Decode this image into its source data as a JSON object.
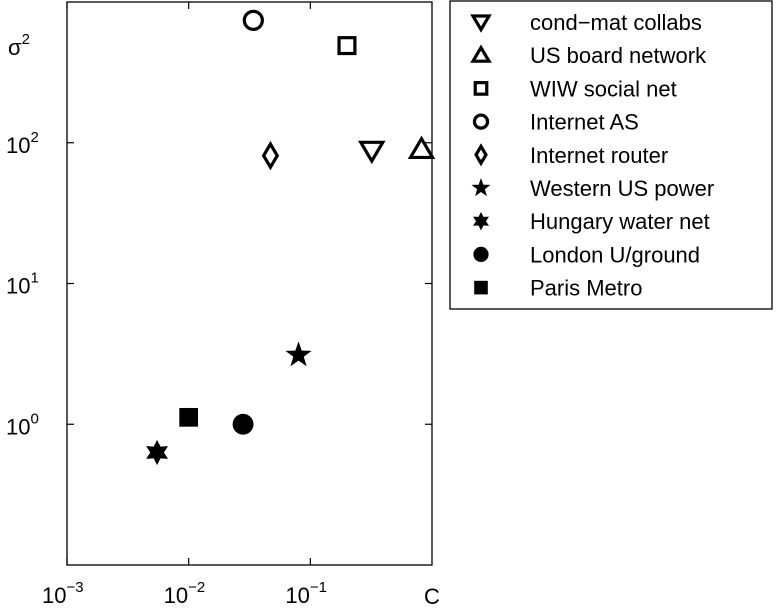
{
  "chart_data": {
    "type": "scatter",
    "xlabel": "C",
    "ylabel": "σ",
    "ylabel_exp": "2",
    "xscale": "log",
    "yscale": "log",
    "xlim": [
      0.001,
      1
    ],
    "ylim": [
      0.1,
      1000
    ],
    "xticks": [
      {
        "value": 0.001,
        "base": "10",
        "exp": "−3"
      },
      {
        "value": 0.01,
        "base": "10",
        "exp": "−2"
      },
      {
        "value": 0.1,
        "base": "10",
        "exp": "−1"
      }
    ],
    "yticks": [
      {
        "value": 1,
        "base": "10",
        "exp": "0"
      },
      {
        "value": 10,
        "base": "10",
        "exp": "1"
      },
      {
        "value": 100,
        "base": "10",
        "exp": "2"
      }
    ],
    "grid": false,
    "legend_position": "outside-right-top",
    "series": [
      {
        "name": "cond−mat collabs",
        "marker": "triangle-down-open",
        "x": 0.32,
        "y": 88
      },
      {
        "name": "US board network",
        "marker": "triangle-up-open",
        "x": 0.82,
        "y": 90
      },
      {
        "name": "WIW social net",
        "marker": "square-open",
        "x": 0.2,
        "y": 490
      },
      {
        "name": "Internet AS",
        "marker": "circle-open",
        "x": 0.034,
        "y": 740
      },
      {
        "name": "Internet router",
        "marker": "diamond-open",
        "x": 0.047,
        "y": 81
      },
      {
        "name": "Western US power",
        "marker": "star5-filled",
        "x": 0.08,
        "y": 3.1
      },
      {
        "name": "Hungary water net",
        "marker": "star6-filled",
        "x": 0.0055,
        "y": 0.63
      },
      {
        "name": "London U/ground",
        "marker": "circle-filled",
        "x": 0.028,
        "y": 1.0
      },
      {
        "name": "Paris Metro",
        "marker": "square-filled",
        "x": 0.01,
        "y": 1.12
      }
    ]
  }
}
